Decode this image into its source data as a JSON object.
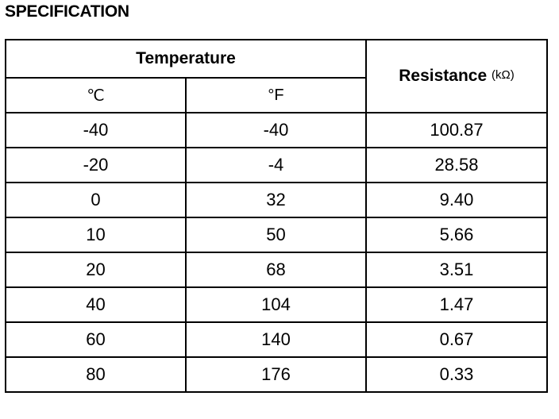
{
  "heading": "SPECIFICATION",
  "table": {
    "temperature_header": "Temperature",
    "resistance_header": "Resistance",
    "resistance_unit": "(kΩ)",
    "celsius_header": "℃",
    "fahrenheit_header": "°F",
    "rows": [
      {
        "celsius": "-40",
        "fahrenheit": "-40",
        "resistance": "100.87"
      },
      {
        "celsius": "-20",
        "fahrenheit": "-4",
        "resistance": "28.58"
      },
      {
        "celsius": "0",
        "fahrenheit": "32",
        "resistance": "9.40"
      },
      {
        "celsius": "10",
        "fahrenheit": "50",
        "resistance": "5.66"
      },
      {
        "celsius": "20",
        "fahrenheit": "68",
        "resistance": "3.51"
      },
      {
        "celsius": "40",
        "fahrenheit": "104",
        "resistance": "1.47"
      },
      {
        "celsius": "60",
        "fahrenheit": "140",
        "resistance": "0.67"
      },
      {
        "celsius": "80",
        "fahrenheit": "176",
        "resistance": "0.33"
      }
    ]
  }
}
